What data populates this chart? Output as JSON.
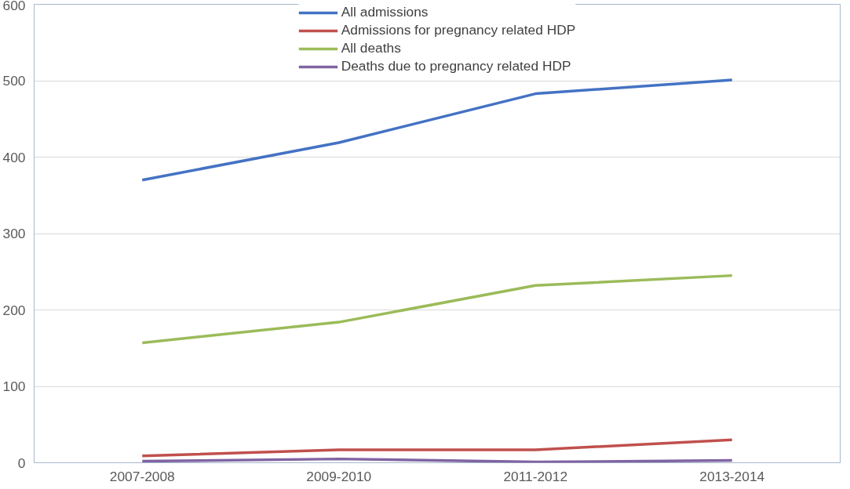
{
  "chart_data": {
    "type": "line",
    "categories": [
      "2007-2008",
      "2009-2010",
      "2011-2012",
      "2013-2014"
    ],
    "series": [
      {
        "name": "All admissions",
        "color": "#4472c4",
        "values": [
          370,
          419,
          483,
          501
        ]
      },
      {
        "name": "Admissions for pregnancy related HDP",
        "color": "#c0504d",
        "values": [
          9,
          17,
          17,
          30
        ]
      },
      {
        "name": "All deaths",
        "color": "#9bbb59",
        "values": [
          157,
          184,
          232,
          245
        ]
      },
      {
        "name": "Deaths due to pregnancy related HDP",
        "color": "#8064a2",
        "values": [
          2,
          5,
          1,
          3
        ]
      }
    ],
    "ylim": [
      0,
      600
    ],
    "yticks": [
      0,
      100,
      200,
      300,
      400,
      500,
      600
    ],
    "grid": "y",
    "legend": "top",
    "marker": "none",
    "line_style": "solid"
  }
}
